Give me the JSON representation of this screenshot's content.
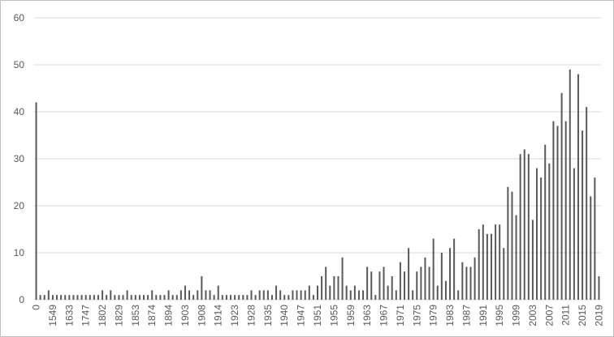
{
  "chart_data": {
    "type": "bar",
    "categories": [
      "0",
      null,
      null,
      null,
      "1549",
      null,
      null,
      null,
      "1633",
      null,
      null,
      null,
      "1747",
      null,
      null,
      null,
      "1802",
      null,
      null,
      null,
      "1829",
      null,
      null,
      null,
      "1853",
      null,
      null,
      null,
      "1874",
      null,
      null,
      null,
      "1894",
      null,
      null,
      null,
      "1903",
      null,
      null,
      null,
      "1908",
      null,
      null,
      null,
      "1914",
      null,
      null,
      null,
      "1923",
      null,
      null,
      null,
      "1928",
      null,
      null,
      null,
      "1935",
      null,
      null,
      null,
      "1940",
      null,
      null,
      null,
      "1947",
      null,
      null,
      null,
      "1951",
      null,
      null,
      null,
      "1955",
      null,
      null,
      null,
      "1959",
      null,
      null,
      null,
      "1963",
      null,
      null,
      null,
      "1967",
      null,
      null,
      null,
      "1971",
      null,
      null,
      null,
      "1975",
      null,
      null,
      null,
      "1979",
      null,
      null,
      null,
      "1983",
      null,
      null,
      null,
      "1987",
      null,
      null,
      null,
      "1991",
      null,
      null,
      null,
      "1995",
      null,
      null,
      null,
      "1999",
      null,
      null,
      null,
      "2003",
      null,
      null,
      null,
      "2007",
      null,
      null,
      null,
      "2011",
      null,
      null,
      null,
      "2015",
      null,
      null,
      null,
      "2019"
    ],
    "values": [
      42,
      1,
      1,
      2,
      1,
      1,
      1,
      1,
      1,
      1,
      1,
      1,
      1,
      1,
      1,
      1,
      2,
      1,
      2,
      1,
      1,
      1,
      2,
      1,
      1,
      1,
      1,
      1,
      2,
      1,
      1,
      1,
      2,
      1,
      1,
      2,
      3,
      2,
      1,
      2,
      5,
      2,
      2,
      1,
      3,
      1,
      1,
      1,
      1,
      1,
      1,
      1,
      2,
      1,
      2,
      2,
      2,
      1,
      3,
      2,
      1,
      1,
      2,
      2,
      2,
      2,
      3,
      1,
      3,
      5,
      7,
      3,
      5,
      5,
      9,
      3,
      2,
      3,
      2,
      2,
      7,
      6,
      1,
      6,
      7,
      3,
      5,
      2,
      8,
      6,
      11,
      2,
      6,
      7,
      9,
      7,
      13,
      3,
      10,
      4,
      11,
      13,
      2,
      8,
      7,
      7,
      9,
      15,
      16,
      14,
      14,
      16,
      16,
      11,
      24,
      23,
      18,
      31,
      32,
      31,
      17,
      28,
      26,
      33,
      29,
      38,
      37,
      44,
      38,
      49,
      28,
      48,
      36,
      41,
      22,
      26,
      5
    ],
    "color": "#595959",
    "ylim": [
      0,
      60
    ],
    "yticks": [
      0,
      10,
      20,
      30,
      40,
      50,
      60
    ],
    "grid": true
  }
}
